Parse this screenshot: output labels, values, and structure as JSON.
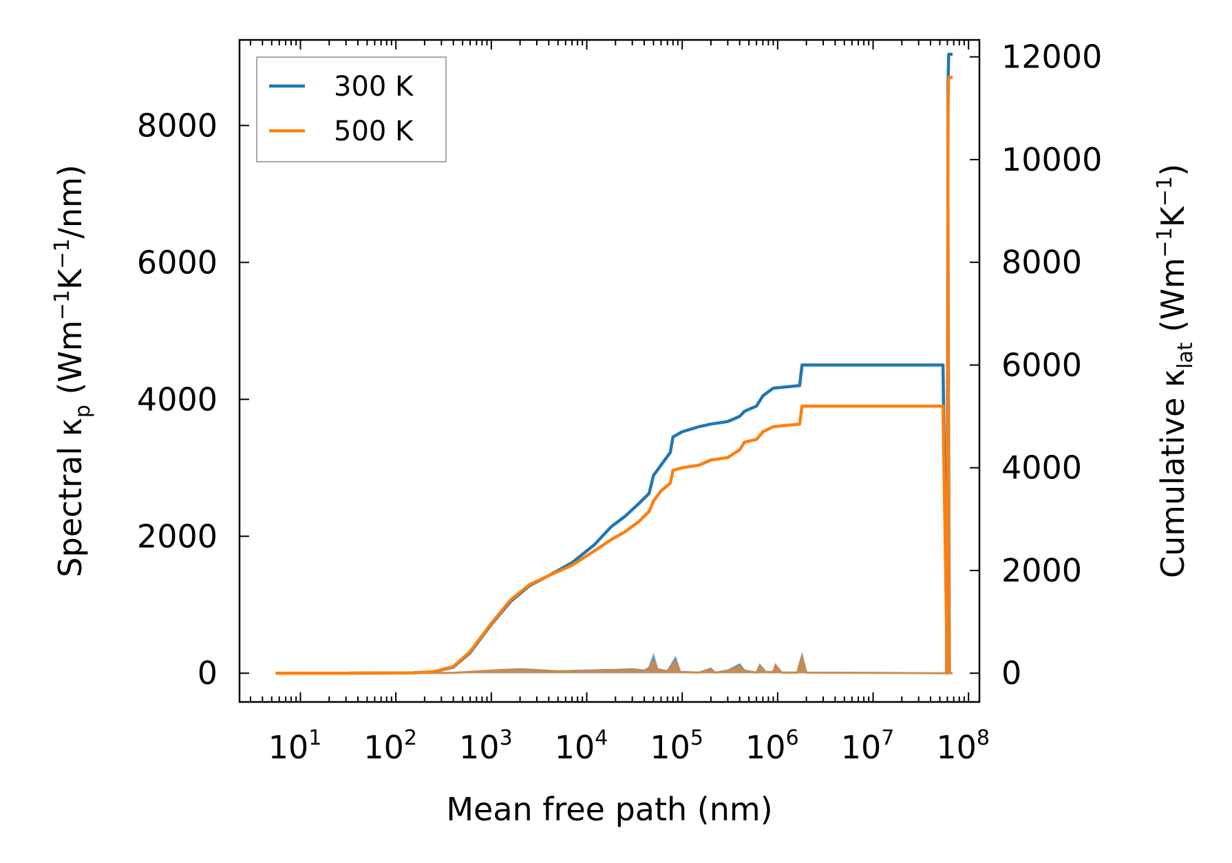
{
  "chart_data": {
    "type": "line",
    "xscale": "log",
    "xlabel": "Mean free path (nm)",
    "ylabel_left": {
      "prefix": "Spectral κ",
      "sub": "p",
      "units_open": " (Wm",
      "sup1": "−1",
      "mid": "K",
      "sup2": "−1",
      "units_close": "/nm)"
    },
    "ylabel_right": {
      "prefix": "Cumulative κ",
      "sub": "lat",
      "units_open": " (Wm",
      "sup1": "−1",
      "mid": "K",
      "sup2": "−1",
      "units_close": ")"
    },
    "xlim": [
      2.3,
      130000000
    ],
    "ylim_left": [
      -420,
      9250
    ],
    "ylim_right": [
      -560,
      12330
    ],
    "x_ticks": [
      {
        "value": 10,
        "base": "10",
        "exp": "1"
      },
      {
        "value": 100,
        "base": "10",
        "exp": "2"
      },
      {
        "value": 1000,
        "base": "10",
        "exp": "3"
      },
      {
        "value": 10000,
        "base": "10",
        "exp": "4"
      },
      {
        "value": 100000,
        "base": "10",
        "exp": "5"
      },
      {
        "value": 1000000,
        "base": "10",
        "exp": "6"
      },
      {
        "value": 10000000,
        "base": "10",
        "exp": "7"
      },
      {
        "value": 100000000,
        "base": "10",
        "exp": "8"
      }
    ],
    "yticks_left": [
      "0",
      "2000",
      "4000",
      "6000",
      "8000"
    ],
    "yticks_right": [
      "0",
      "2000",
      "4000",
      "6000",
      "8000",
      "10000",
      "12000"
    ],
    "legend": {
      "position": "top-left",
      "entries": [
        "300 K",
        "500 K"
      ]
    },
    "colors": {
      "300 K": "#1f77b4",
      "500 K": "#ff7f0e",
      "spectral_fill_300": "#6a9fc8",
      "spectral_fill_500": "#c48a52"
    },
    "series": [
      {
        "name": "300 K",
        "axis": "right",
        "role": "cumulative",
        "x": [
          5.5,
          30,
          150,
          250,
          400,
          600,
          1000,
          1600,
          2500,
          4000,
          7000,
          12000,
          18000,
          25000,
          35000,
          45000,
          50000,
          60000,
          75000,
          80000,
          100000,
          150000,
          200000,
          300000,
          400000,
          450000,
          600000,
          700000,
          900000,
          1700000,
          1800000,
          53000000,
          54000000,
          60000000,
          61000000,
          62000000,
          64000000,
          68000000
        ],
        "y": [
          0,
          0,
          5,
          30,
          120,
          400,
          950,
          1400,
          1700,
          1900,
          2150,
          2500,
          2850,
          3050,
          3300,
          3500,
          3850,
          4050,
          4300,
          4600,
          4700,
          4800,
          4850,
          4900,
          5000,
          5100,
          5200,
          5400,
          5550,
          5600,
          6000,
          6000,
          6000,
          0,
          11500,
          12050,
          12050,
          12050
        ]
      },
      {
        "name": "500 K",
        "axis": "right",
        "role": "cumulative",
        "x": [
          5.5,
          30,
          150,
          250,
          400,
          600,
          1000,
          1600,
          2500,
          4000,
          7000,
          12000,
          18000,
          25000,
          35000,
          45000,
          50000,
          60000,
          75000,
          80000,
          100000,
          150000,
          200000,
          300000,
          400000,
          450000,
          600000,
          700000,
          900000,
          1700000,
          1800000,
          53000000,
          54000000,
          60000000,
          61000000,
          62000000,
          64000000,
          68000000
        ],
        "y": [
          0,
          0,
          5,
          30,
          130,
          420,
          970,
          1430,
          1720,
          1900,
          2100,
          2380,
          2600,
          2750,
          2950,
          3150,
          3350,
          3550,
          3700,
          3950,
          4000,
          4050,
          4150,
          4200,
          4350,
          4500,
          4550,
          4700,
          4800,
          4850,
          5200,
          5200,
          5200,
          0,
          11000,
          11600,
          11600,
          11600
        ]
      },
      {
        "name": "300 K spectral",
        "axis": "left",
        "role": "spectral",
        "x": [
          5.5,
          400,
          1000,
          2000,
          5000,
          10000,
          20000,
          30000,
          40000,
          45000,
          50000,
          55000,
          70000,
          85000,
          95000,
          150000,
          200000,
          220000,
          300000,
          400000,
          450000,
          600000,
          650000,
          750000,
          900000,
          950000,
          1100000,
          1600000,
          1800000,
          2000000,
          53000000,
          58000000,
          61000000,
          64000000,
          68000000
        ],
        "y": [
          0,
          5,
          40,
          60,
          30,
          40,
          50,
          60,
          40,
          80,
          250,
          60,
          30,
          220,
          20,
          10,
          70,
          10,
          40,
          130,
          40,
          10,
          120,
          20,
          20,
          120,
          10,
          10,
          260,
          10,
          0,
          0,
          8800,
          0,
          0
        ]
      },
      {
        "name": "500 K spectral",
        "axis": "left",
        "role": "spectral",
        "x": [
          5.5,
          400,
          1000,
          2000,
          5000,
          10000,
          20000,
          30000,
          40000,
          45000,
          50000,
          55000,
          70000,
          85000,
          95000,
          150000,
          200000,
          220000,
          300000,
          400000,
          450000,
          600000,
          650000,
          750000,
          900000,
          950000,
          1100000,
          1600000,
          1800000,
          2000000,
          53000000,
          58000000,
          61000000,
          64000000,
          68000000
        ],
        "y": [
          0,
          5,
          40,
          50,
          25,
          30,
          40,
          50,
          30,
          60,
          180,
          50,
          25,
          170,
          15,
          8,
          55,
          8,
          30,
          100,
          30,
          8,
          100,
          15,
          15,
          110,
          8,
          8,
          230,
          8,
          0,
          0,
          8200,
          0,
          0
        ]
      }
    ]
  }
}
